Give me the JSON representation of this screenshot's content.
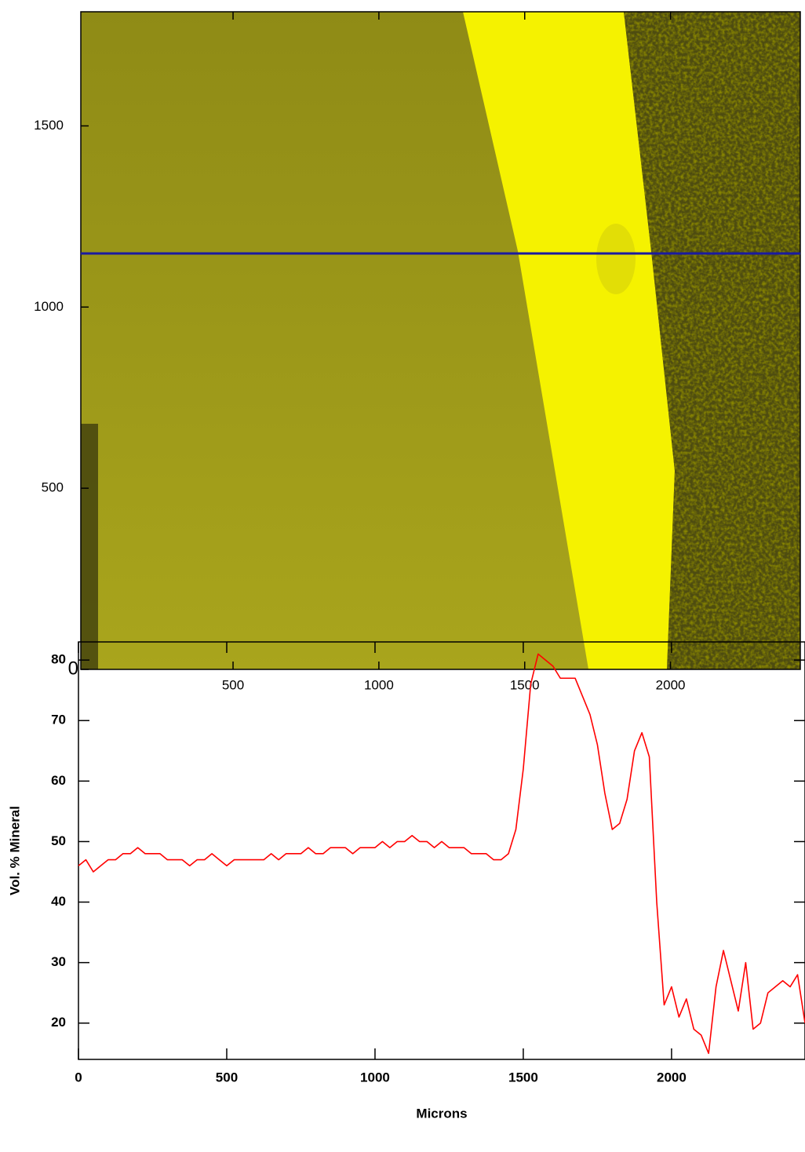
{
  "chart_data": [
    {
      "type": "image",
      "xlim": [
        -22,
        2445
      ],
      "ylim": [
        0,
        1815
      ],
      "xticks": [
        500,
        1000,
        1500,
        2000
      ],
      "yticks": [
        0,
        500,
        1000,
        1500
      ],
      "profile_line_y": 1148,
      "profile_line_color": "#1a1aa0"
    },
    {
      "type": "line",
      "x_label": "Microns",
      "y_label": "Vol. % Mineral",
      "xlim": [
        0,
        2450
      ],
      "ylim": [
        14,
        83
      ],
      "xticks": [
        0,
        500,
        1000,
        1500,
        2000
      ],
      "yticks": [
        20,
        30,
        40,
        50,
        60,
        70,
        80
      ],
      "x": [
        0,
        25,
        50,
        75,
        100,
        125,
        150,
        175,
        200,
        225,
        250,
        275,
        300,
        325,
        350,
        375,
        400,
        425,
        450,
        475,
        500,
        525,
        550,
        575,
        600,
        625,
        650,
        675,
        700,
        725,
        750,
        775,
        800,
        825,
        850,
        875,
        900,
        925,
        950,
        975,
        1000,
        1025,
        1050,
        1075,
        1100,
        1125,
        1150,
        1175,
        1200,
        1225,
        1250,
        1275,
        1300,
        1325,
        1350,
        1375,
        1400,
        1425,
        1450,
        1475,
        1500,
        1525,
        1550,
        1575,
        1600,
        1625,
        1650,
        1675,
        1700,
        1725,
        1750,
        1775,
        1800,
        1825,
        1850,
        1875,
        1900,
        1925,
        1950,
        1975,
        2000,
        2025,
        2050,
        2075,
        2100,
        2125,
        2150,
        2175,
        2200,
        2225,
        2250,
        2275,
        2300,
        2325,
        2350,
        2375,
        2400,
        2425,
        2450
      ],
      "series": [
        {
          "color": "#ff0000",
          "values": [
            46,
            47,
            45,
            46,
            47,
            47,
            48,
            48,
            49,
            48,
            48,
            48,
            47,
            47,
            47,
            46,
            47,
            47,
            48,
            47,
            46,
            47,
            47,
            47,
            47,
            47,
            48,
            47,
            48,
            48,
            48,
            49,
            48,
            48,
            49,
            49,
            49,
            48,
            49,
            49,
            49,
            50,
            49,
            50,
            50,
            51,
            50,
            50,
            49,
            50,
            49,
            49,
            49,
            48,
            48,
            48,
            47,
            47,
            48,
            52,
            62,
            76,
            81,
            80,
            79,
            77,
            77,
            77,
            74,
            71,
            66,
            58,
            52,
            53,
            57,
            65,
            68,
            64,
            40,
            23,
            26,
            21,
            24,
            19,
            18,
            15,
            26,
            32,
            27,
            22,
            30,
            19,
            20,
            25,
            26,
            27,
            26,
            28,
            20
          ]
        }
      ]
    }
  ]
}
